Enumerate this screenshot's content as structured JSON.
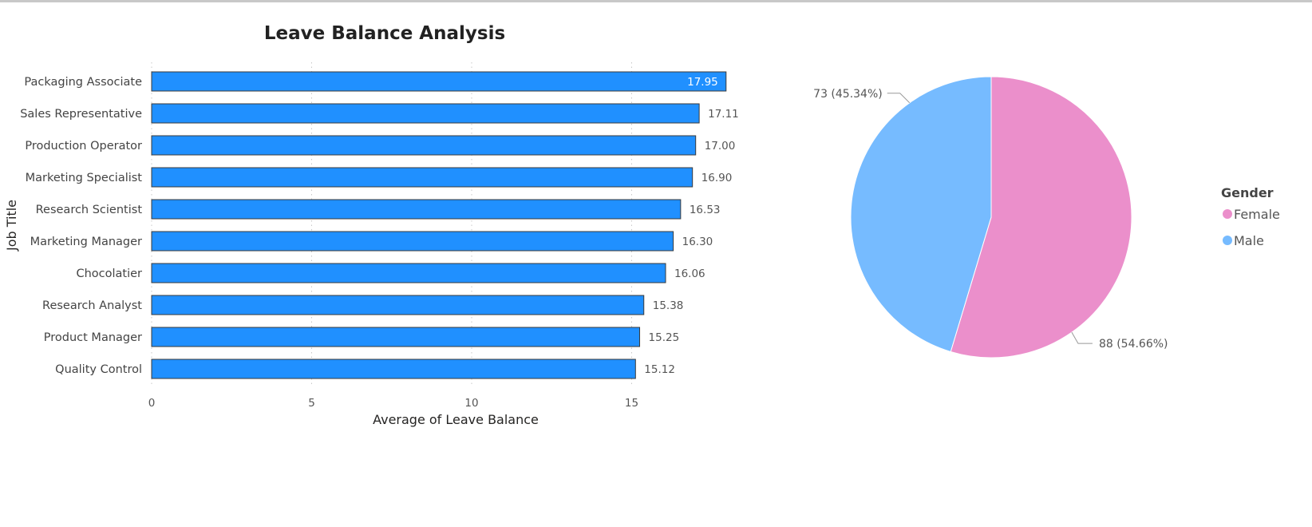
{
  "chart_data": [
    {
      "type": "bar",
      "orientation": "horizontal",
      "title": "Leave Balance Analysis",
      "xlabel": "Average of Leave Balance",
      "ylabel": "Job Title",
      "xlim": [
        0,
        18
      ],
      "xticks": [
        "0",
        "5",
        "10",
        "15"
      ],
      "grid": true,
      "color": "#2090ff",
      "categories": [
        "Packaging Associate",
        "Sales Representative",
        "Production Operator",
        "Marketing Specialist",
        "Research Scientist",
        "Marketing Manager",
        "Chocolatier",
        "Research Analyst",
        "Product Manager",
        "Quality Control"
      ],
      "values": [
        17.95,
        17.11,
        17.0,
        16.9,
        16.53,
        16.3,
        16.06,
        15.38,
        15.25,
        15.12
      ],
      "value_labels": [
        "17.95",
        "17.11",
        "17.00",
        "16.90",
        "16.53",
        "16.30",
        "16.06",
        "15.38",
        "15.25",
        "15.12"
      ]
    },
    {
      "type": "pie",
      "legend_title": "Gender",
      "legend_position": "right",
      "slices": [
        {
          "label": "Female",
          "value": 88,
          "data_label": "88 (54.66%)",
          "color": "#eb8fcb"
        },
        {
          "label": "Male",
          "value": 73,
          "data_label": "73 (45.34%)",
          "color": "#76bbff"
        }
      ]
    }
  ]
}
